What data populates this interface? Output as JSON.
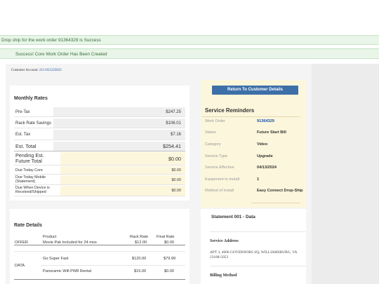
{
  "alerts": {
    "dropship": "Drop ship for the work order 91364329 is Success",
    "success": "Success! Core Work Order Has Been Created"
  },
  "account": {
    "label": "Customer Account:",
    "number": "215-051235023"
  },
  "monthly_rates": {
    "title": "Monthly Rates",
    "rows": [
      {
        "label": "Pre-Tax",
        "value": "$247.25"
      },
      {
        "label": "Rack Rate Savings",
        "value": "$106.01"
      },
      {
        "label": "Est. Tax",
        "value": "$7.16"
      },
      {
        "label": "Est. Total",
        "value": "$254.41"
      },
      {
        "label": "Pending Est. Future Total",
        "value": "$0.00"
      },
      {
        "label": "Due Today Core",
        "value": "$0.00"
      },
      {
        "label": "Due Today Mobile (Statement)",
        "value": "$0.00"
      },
      {
        "label": "Due When Device is Received/Shipped",
        "value": "$0.00"
      }
    ]
  },
  "rate_details": {
    "title": "Rate Details",
    "headers": {
      "product": "Product",
      "rack_rate": "Rack Rate",
      "final_rate": "Final Rate"
    },
    "groups": [
      {
        "category": "OFFER",
        "rows": [
          {
            "product": "Movie Pak Included for 24 mos",
            "rack_rate": "$12.00",
            "final_rate": "$0.00"
          }
        ]
      },
      {
        "category": "DATA",
        "rows": [
          {
            "product": "Go Super Fast",
            "rack_rate": "$120.00",
            "final_rate": "$79.99"
          },
          {
            "product": "Panoramic Wifi PW8 Rental",
            "rack_rate": "$15.00",
            "final_rate": "$0.00"
          }
        ]
      }
    ]
  },
  "return_button": "Return To Customer Details",
  "service_reminders": {
    "title": "Service Reminders",
    "rows": [
      {
        "label": "Work Order",
        "value": "91364329"
      },
      {
        "label": "Status",
        "value": "Future Start Bill"
      },
      {
        "label": "Category",
        "value": "Video"
      },
      {
        "label": "Service Type",
        "value": "Upgrade"
      },
      {
        "label": "Service Effective",
        "value": "04/13/2024"
      },
      {
        "label": "Equipment to Install",
        "value": "1"
      },
      {
        "label": "Method of Install",
        "value": "Easy Connect Drop-Ship"
      }
    ]
  },
  "statement": {
    "title": "Statement 001 - Data",
    "service_address_label": "Service Address",
    "service_address": "APT 3, 4006 GOVERNORS SQ, WILLIAMSBURG, VA 23188-5053",
    "billing_method_label": "Billing Method"
  }
}
